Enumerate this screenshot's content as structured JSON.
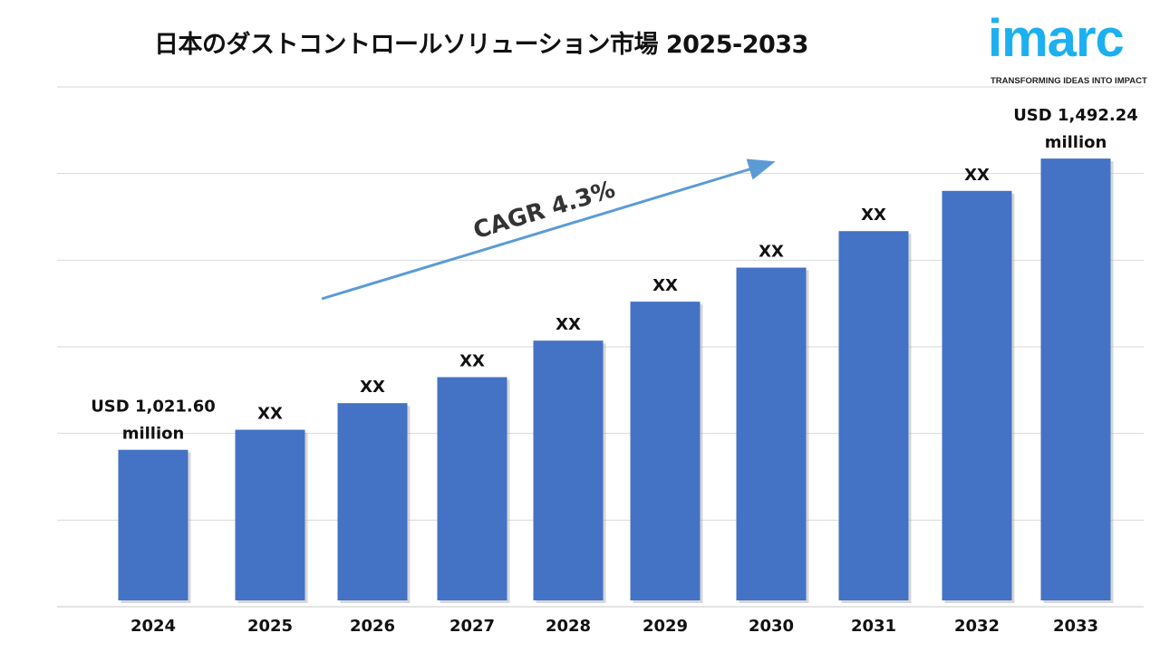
{
  "title": "日本のダストコントロールソリューション市場 2025-2033",
  "logo": {
    "word": "imarc",
    "tagline": "TRANSFORMING IDEAS INTO IMPACT",
    "color": "#1cb0f0"
  },
  "chart_data": {
    "type": "bar",
    "title": "日本のダストコントロールソリューション市場 2025-2033",
    "xlabel": "",
    "ylabel": "",
    "categories": [
      "2024",
      "2025",
      "2026",
      "2027",
      "2028",
      "2029",
      "2030",
      "2031",
      "2032",
      "2033"
    ],
    "values": [
      1021.6,
      1054,
      1097,
      1139,
      1198,
      1261,
      1316,
      1375,
      1440,
      1492.24
    ],
    "data_labels": [
      [
        "USD 1,021.60",
        "million"
      ],
      [
        "XX"
      ],
      [
        "XX"
      ],
      [
        "XX"
      ],
      [
        "XX"
      ],
      [
        "XX"
      ],
      [
        "XX"
      ],
      [
        "XX"
      ],
      [
        "XX"
      ],
      [
        "USD 1,492.24",
        "million"
      ]
    ],
    "ylim": [
      768,
      1608
    ],
    "grid": true,
    "bar_color": "#4472c4",
    "annotation": {
      "text": "CAGR 4.3%",
      "arrow_color": "#5b9bd5"
    }
  }
}
